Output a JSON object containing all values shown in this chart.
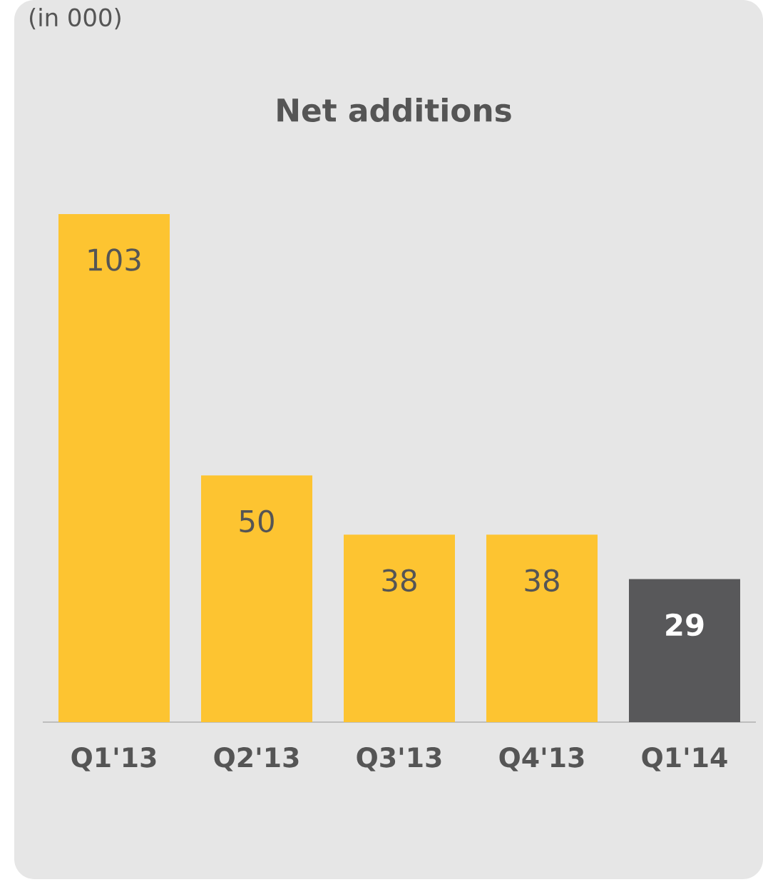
{
  "chart_data": {
    "type": "bar",
    "title": "Net additions",
    "subtitle": "(in 000)",
    "categories": [
      "Q1'13",
      "Q2'13",
      "Q3'13",
      "Q4'13",
      "Q1'14"
    ],
    "values": [
      103,
      50,
      38,
      38,
      29
    ],
    "colors": [
      "#fdc431",
      "#fdc431",
      "#fdc431",
      "#fdc431",
      "#58585a"
    ],
    "data_labels": true,
    "tick_labels": "x"
  }
}
